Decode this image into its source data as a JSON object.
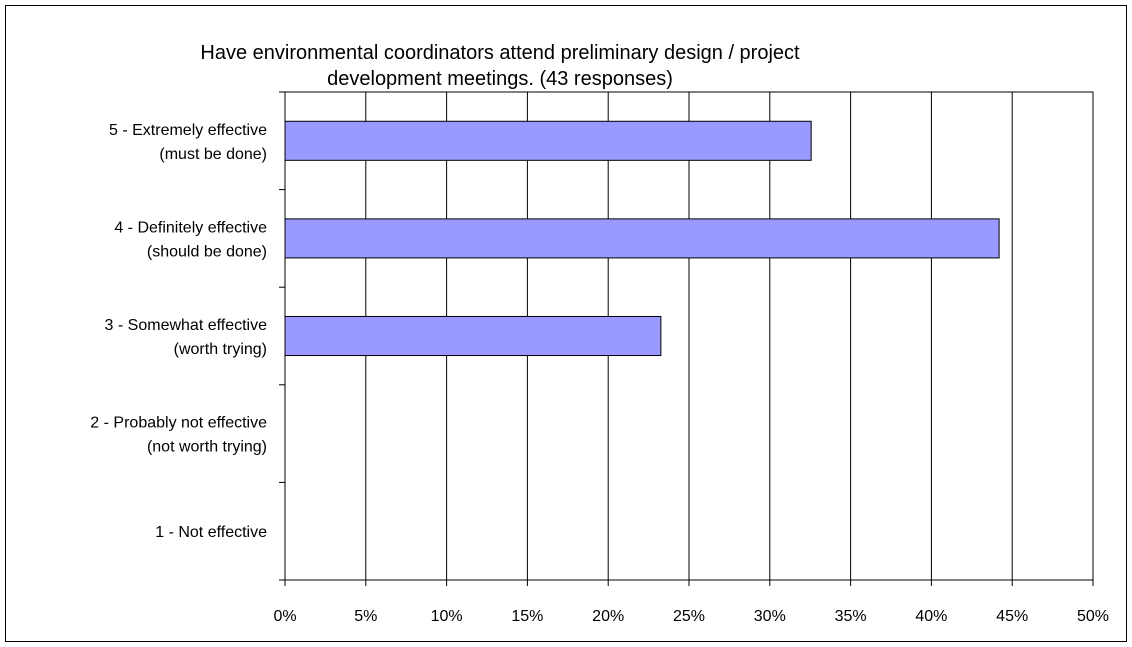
{
  "chart_data": {
    "type": "bar",
    "orientation": "horizontal",
    "title": "Have environmental coordinators attend preliminary design / project\ndevelopment meetings.  (43 responses)",
    "categories": [
      [
        "5 - Extremely effective",
        "(must be done)"
      ],
      [
        "4 - Definitely effective",
        "(should be done)"
      ],
      [
        "3 - Somewhat effective",
        "(worth trying)"
      ],
      [
        "2 - Probably not effective",
        "(not worth trying)"
      ],
      [
        "1 - Not effective"
      ]
    ],
    "values": [
      0.3256,
      0.4419,
      0.2326,
      0,
      0
    ],
    "xlim": [
      0,
      0.5
    ],
    "x_ticks": [
      "0%",
      "5%",
      "10%",
      "15%",
      "20%",
      "25%",
      "30%",
      "35%",
      "40%",
      "45%",
      "50%"
    ],
    "xlabel": "",
    "ylabel": "",
    "grid": "vertical",
    "legend": "none",
    "bar_color": "#9999ff"
  }
}
